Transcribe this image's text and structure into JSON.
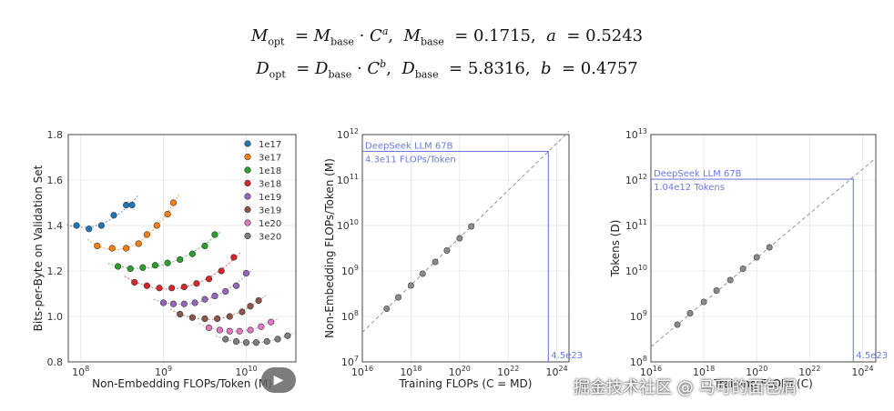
{
  "formulas": {
    "m": {
      "lhs": "M",
      "lhs_sub": "opt",
      "rhs": "M",
      "rhs_sub": "base",
      "c": "C",
      "exp": "a",
      "p1": "M",
      "p1_sub": "base",
      "p1_val": "0.1715",
      "p2": "a",
      "p2_val": "0.5243"
    },
    "d": {
      "lhs": "D",
      "lhs_sub": "opt",
      "rhs": "D",
      "rhs_sub": "base",
      "c": "C",
      "exp": "b",
      "p1": "D",
      "p1_sub": "base",
      "p1_val": "5.8316",
      "p2": "b",
      "p2_val": "0.4757"
    }
  },
  "watermark": "掘金技术社区 @ 马可的面包屑",
  "colors": {
    "annotation": "#6a7ae0",
    "fit_line": "#888888"
  },
  "chart_data": [
    {
      "type": "scatter",
      "xlabel": "Non-Embedding FLOPs/Token (M)",
      "ylabel": "Bits-per-Byte on Validation Set",
      "xscale": "log",
      "xlim_log10": [
        7.85,
        10.6
      ],
      "ylim": [
        0.8,
        1.8
      ],
      "yticks": [
        "0.8",
        "1.0",
        "1.2",
        "1.4",
        "1.6",
        "1.8"
      ],
      "xticks": [
        {
          "exp": 8,
          "label": "10",
          "sup": "8"
        },
        {
          "exp": 9,
          "label": "10",
          "sup": "9"
        },
        {
          "exp": 10,
          "label": "10",
          "sup": "10"
        }
      ],
      "legend_position": "top-right",
      "series": [
        {
          "name": "1e17",
          "color": "#1f77b4",
          "x_log10": [
            7.95,
            8.1,
            8.25,
            8.4,
            8.55,
            8.62
          ],
          "y": [
            1.4,
            1.385,
            1.4,
            1.445,
            1.49,
            1.49
          ]
        },
        {
          "name": "3e17",
          "color": "#ff7f0e",
          "x_log10": [
            8.2,
            8.38,
            8.55,
            8.7,
            8.8,
            8.92,
            9.05,
            9.12
          ],
          "y": [
            1.31,
            1.3,
            1.3,
            1.32,
            1.36,
            1.4,
            1.45,
            1.5
          ]
        },
        {
          "name": "1e18",
          "color": "#2ca02c",
          "x_log10": [
            8.45,
            8.6,
            8.75,
            8.9,
            9.05,
            9.2,
            9.35,
            9.5,
            9.62
          ],
          "y": [
            1.22,
            1.21,
            1.215,
            1.225,
            1.235,
            1.25,
            1.275,
            1.31,
            1.36
          ]
        },
        {
          "name": "3e18",
          "color": "#d62728",
          "x_log10": [
            8.65,
            8.8,
            8.95,
            9.1,
            9.25,
            9.4,
            9.55,
            9.7,
            9.85
          ],
          "y": [
            1.15,
            1.135,
            1.125,
            1.125,
            1.13,
            1.145,
            1.165,
            1.2,
            1.26
          ]
        },
        {
          "name": "1e19",
          "color": "#9467bd",
          "x_log10": [
            9.0,
            9.12,
            9.25,
            9.38,
            9.5,
            9.62,
            9.75,
            9.88,
            10.0
          ],
          "y": [
            1.06,
            1.055,
            1.055,
            1.06,
            1.075,
            1.09,
            1.11,
            1.135,
            1.19
          ]
        },
        {
          "name": "3e19",
          "color": "#8c564b",
          "x_log10": [
            9.2,
            9.35,
            9.5,
            9.65,
            9.8,
            9.95,
            10.05,
            10.15
          ],
          "y": [
            1.01,
            0.995,
            0.99,
            0.99,
            1.0,
            1.02,
            1.045,
            1.07
          ]
        },
        {
          "name": "1e20",
          "color": "#e377c2",
          "x_log10": [
            9.55,
            9.68,
            9.8,
            9.92,
            10.05,
            10.18,
            10.3
          ],
          "y": [
            0.95,
            0.94,
            0.935,
            0.935,
            0.94,
            0.955,
            0.975
          ]
        },
        {
          "name": "3e20",
          "color": "#7f7f7f",
          "x_log10": [
            9.75,
            9.88,
            10.0,
            10.12,
            10.25,
            10.38,
            10.5
          ],
          "y": [
            0.9,
            0.89,
            0.885,
            0.885,
            0.89,
            0.9,
            0.915
          ]
        }
      ]
    },
    {
      "type": "scatter",
      "xlabel": "Training FLOPs (C = MD)",
      "ylabel": "Non-Embedding FLOPs/Token (M)",
      "xscale": "log",
      "yscale": "log",
      "xlim_log10": [
        16,
        24.5
      ],
      "ylim_log10": [
        7,
        12
      ],
      "xticks": [
        {
          "exp": 16,
          "label": "10",
          "sup": "16"
        },
        {
          "exp": 18,
          "label": "10",
          "sup": "18"
        },
        {
          "exp": 20,
          "label": "10",
          "sup": "20"
        },
        {
          "exp": 22,
          "label": "10",
          "sup": "22"
        },
        {
          "exp": 24,
          "label": "10",
          "sup": "24"
        }
      ],
      "yticks": [
        {
          "exp": 7,
          "label": "10",
          "sup": "7"
        },
        {
          "exp": 8,
          "label": "10",
          "sup": "8"
        },
        {
          "exp": 9,
          "label": "10",
          "sup": "9"
        },
        {
          "exp": 10,
          "label": "10",
          "sup": "10"
        },
        {
          "exp": 11,
          "label": "10",
          "sup": "11"
        },
        {
          "exp": 12,
          "label": "10",
          "sup": "12"
        }
      ],
      "points": {
        "x_log10": [
          17,
          17.48,
          18,
          18.48,
          19,
          19.48,
          20,
          20.48
        ],
        "y_log10": [
          8.17,
          8.42,
          8.68,
          8.94,
          9.2,
          9.45,
          9.72,
          9.98
        ]
      },
      "annotation": {
        "title": "DeepSeek LLM 67B",
        "value": "4.3e11 FLOPs/Token",
        "x_label": "4.5e23",
        "x_log10": 23.65,
        "y_log10": 11.63
      }
    },
    {
      "type": "scatter",
      "xlabel": "Training FLOPs (C)",
      "ylabel": "Tokens (D)",
      "xscale": "log",
      "yscale": "log",
      "xlim_log10": [
        16,
        24.5
      ],
      "ylim_log10": [
        8,
        13
      ],
      "xticks": [
        {
          "exp": 16,
          "label": "10",
          "sup": "16"
        },
        {
          "exp": 18,
          "label": "10",
          "sup": "18"
        },
        {
          "exp": 20,
          "label": "10",
          "sup": "20"
        },
        {
          "exp": 22,
          "label": "10",
          "sup": "22"
        },
        {
          "exp": 24,
          "label": "10",
          "sup": "24"
        }
      ],
      "yticks": [
        {
          "exp": 8,
          "label": "10",
          "sup": "8"
        },
        {
          "exp": 9,
          "label": "10",
          "sup": "9"
        },
        {
          "exp": 10,
          "label": "10",
          "sup": "10"
        },
        {
          "exp": 11,
          "label": "10",
          "sup": "11"
        },
        {
          "exp": 12,
          "label": "10",
          "sup": "12"
        },
        {
          "exp": 13,
          "label": "10",
          "sup": "13"
        }
      ],
      "points": {
        "x_log10": [
          17,
          17.48,
          18,
          18.48,
          19,
          19.48,
          20,
          20.48
        ],
        "y_log10": [
          8.82,
          9.07,
          9.32,
          9.57,
          9.8,
          10.05,
          10.3,
          10.52
        ]
      },
      "annotation": {
        "title": "DeepSeek LLM 67B",
        "value": "1.04e12 Tokens",
        "x_label": "4.5e23",
        "x_log10": 23.65,
        "y_log10": 12.02
      }
    }
  ]
}
